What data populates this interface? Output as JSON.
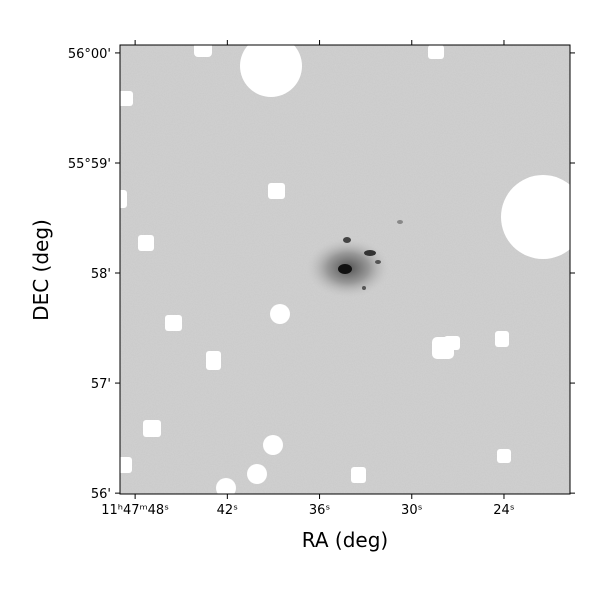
{
  "chart_data": {
    "type": "image",
    "xlabel": "RA (deg)",
    "ylabel": "DEC (deg)",
    "xlim": [
      176.9541,
      176.8321
    ],
    "ylim": [
      55.9332,
      56.0012
    ],
    "xticks": [
      {
        "value": 176.95,
        "label": "11ʰ47ᵐ48ˢ"
      },
      {
        "value": 176.925,
        "label": "42ˢ"
      },
      {
        "value": 176.9,
        "label": "36ˢ"
      },
      {
        "value": 176.875,
        "label": "30ˢ"
      },
      {
        "value": 176.85,
        "label": "24ˢ"
      }
    ],
    "yticks": [
      {
        "value": 56.0,
        "label": "56°00'"
      },
      {
        "value": 55.98333,
        "label": "55°59'"
      },
      {
        "value": 55.96667,
        "label": "58'"
      },
      {
        "value": 55.95,
        "label": "57'"
      },
      {
        "value": 55.93333,
        "label": "56'"
      }
    ]
  }
}
